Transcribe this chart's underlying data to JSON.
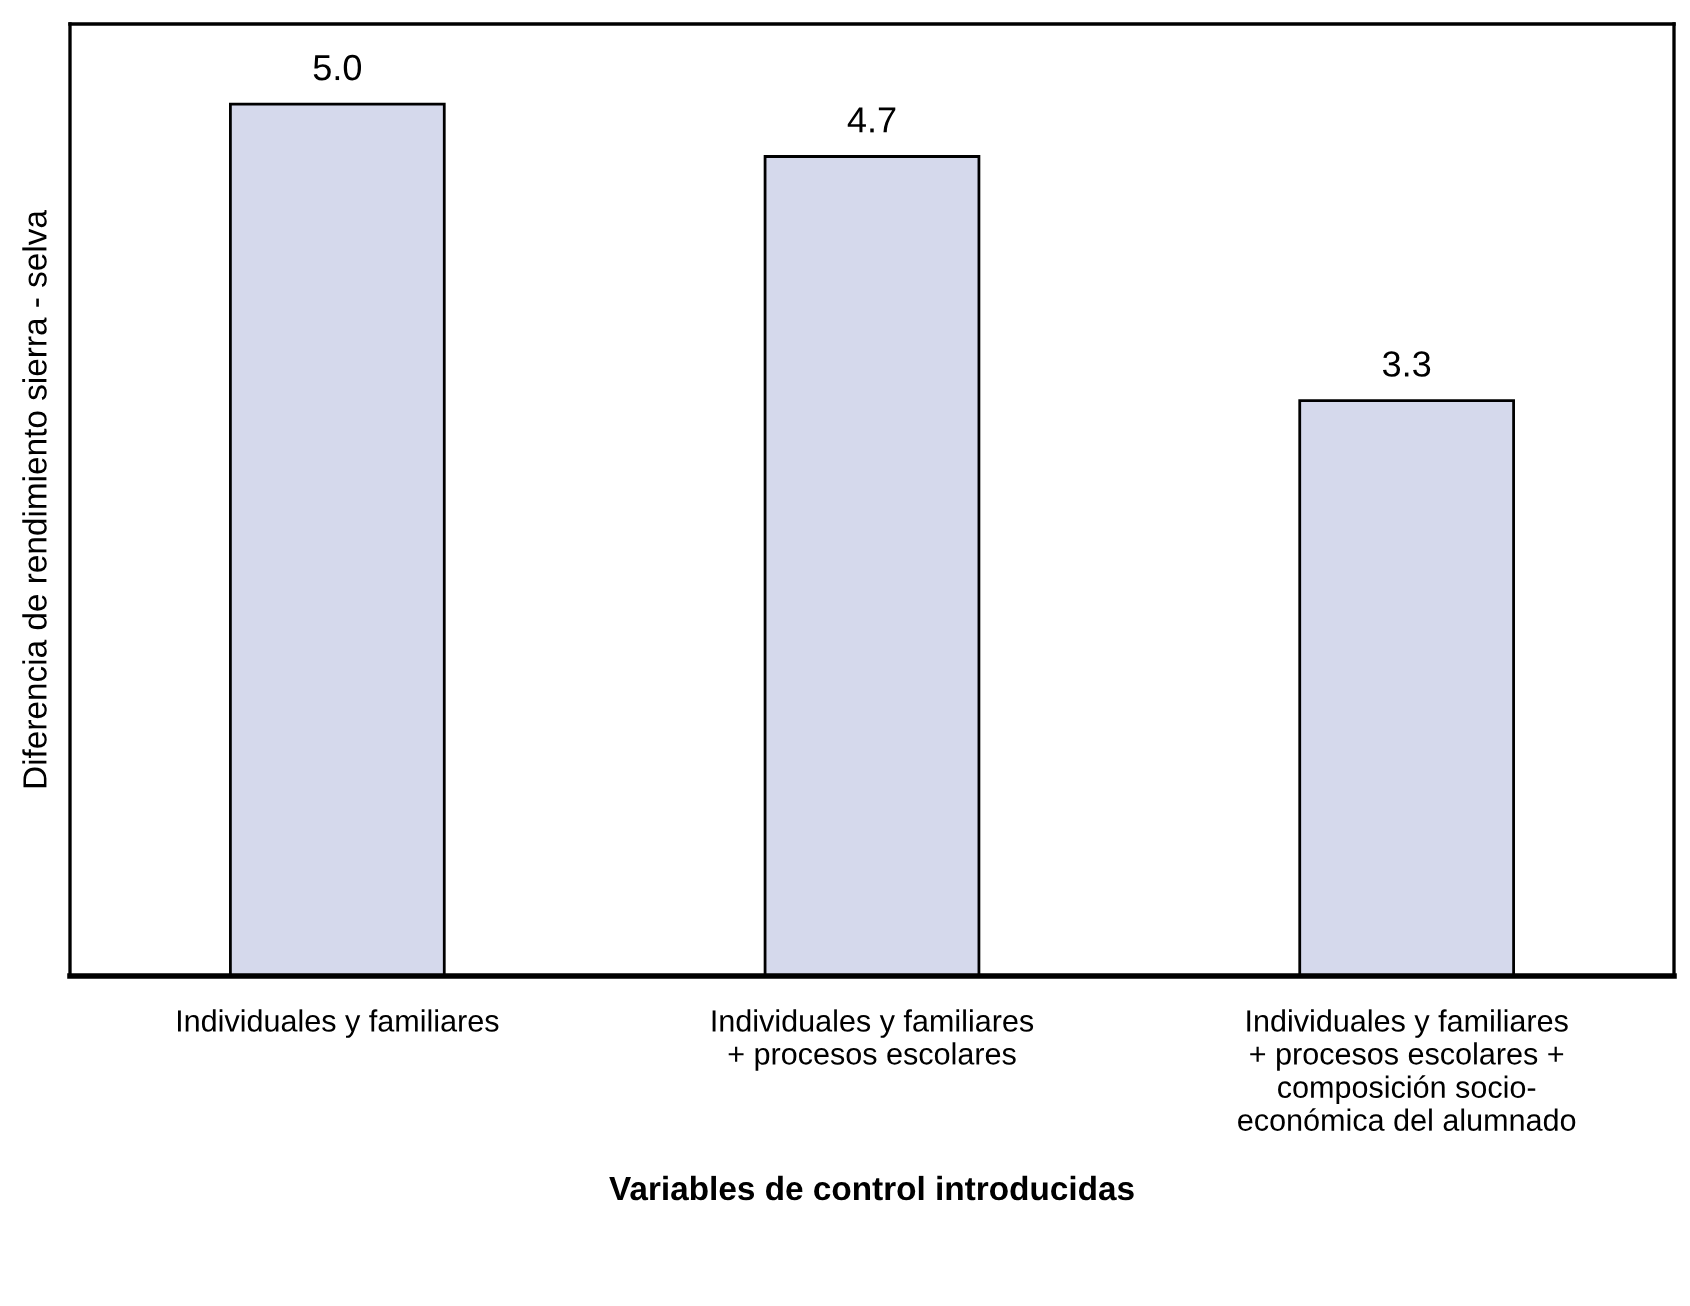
{
  "chart_data": {
    "type": "bar",
    "xlabel": "Variables de control introducidas",
    "ylabel": "Diferencia de rendimiento sierra - selva",
    "categories": [
      "Individuales y familiares",
      "Individuales y familiares\n+ procesos escolares",
      "Individuales y familiares\n+ procesos escolares +\ncomposición socio-\neconómica del alumnado"
    ],
    "values": [
      5.0,
      4.7,
      3.3
    ],
    "value_labels": [
      "5.0",
      "4.7",
      "3.3"
    ],
    "color": "#d5d9ec",
    "tick_labels": "x",
    "grid": false,
    "legend": false
  }
}
